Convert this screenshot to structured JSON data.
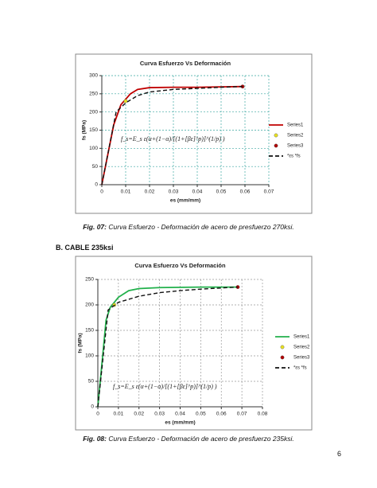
{
  "chart_data": [
    {
      "type": "line",
      "title": "Curva Esfuerzo Vs Deformación",
      "xlabel": "es (mm/mm)",
      "ylabel": "fs (MPa)",
      "annotation": "f_s=E_s ε(α+(1−α)/[(1+[βε]^p)]^(1/p) )",
      "xlim": [
        0,
        0.07
      ],
      "xticks": [
        0,
        0.01,
        0.02,
        0.03,
        0.04,
        0.05,
        0.06,
        0.07
      ],
      "ylim": [
        0,
        300
      ],
      "yticks": [
        0,
        50,
        100,
        150,
        200,
        250,
        300
      ],
      "grid": true,
      "grid_color": "#3aa6a0",
      "series": [
        {
          "name": "Series1",
          "color": "#c00000",
          "line_style": "solid",
          "marker": false,
          "x": [
            0,
            0.005,
            0.008,
            0.012,
            0.015,
            0.02,
            0.03,
            0.04,
            0.05,
            0.059
          ],
          "values": [
            0,
            165,
            220,
            250,
            262,
            267,
            268,
            268,
            269,
            270
          ]
        },
        {
          "name": "Series2",
          "color": "#e8e020",
          "line_style": "none",
          "marker": true,
          "x": [
            0.01
          ],
          "values": [
            230
          ]
        },
        {
          "name": "Series3",
          "color": "#b00000",
          "line_style": "none",
          "marker": true,
          "x": [
            0.059
          ],
          "values": [
            270
          ]
        },
        {
          "name": "*εs *fs",
          "color": "#111111",
          "line_style": "dashed",
          "marker": false,
          "x": [
            0,
            0.006,
            0.01,
            0.015,
            0.02,
            0.03,
            0.04,
            0.05,
            0.059
          ],
          "values": [
            0,
            200,
            225,
            245,
            255,
            262,
            265,
            268,
            270
          ]
        }
      ]
    },
    {
      "type": "line",
      "title": "Curva Esfuerzo Vs Deformación",
      "xlabel": "es (mm/mm)",
      "ylabel": "fs (MPa)",
      "annotation": "f_s=E_s ε(α+(1−α)/[(1+[βε]^p)]^(1/p) )",
      "xlim": [
        0,
        0.08
      ],
      "xticks": [
        0,
        0.01,
        0.02,
        0.03,
        0.04,
        0.05,
        0.06,
        0.07,
        0.08
      ],
      "ylim": [
        0,
        250
      ],
      "yticks": [
        0,
        50,
        100,
        150,
        200,
        250
      ],
      "grid": true,
      "grid_color": "#999999",
      "series": [
        {
          "name": "Series1",
          "color": "#22b14c",
          "line_style": "solid",
          "marker": false,
          "x": [
            0,
            0.004,
            0.006,
            0.01,
            0.015,
            0.02,
            0.03,
            0.05,
            0.068
          ],
          "values": [
            0,
            170,
            195,
            215,
            228,
            232,
            234,
            235,
            235
          ]
        },
        {
          "name": "Series2",
          "color": "#e8e020",
          "line_style": "none",
          "marker": true,
          "x": [
            0.008
          ],
          "values": [
            200
          ]
        },
        {
          "name": "Series3",
          "color": "#b00000",
          "line_style": "none",
          "marker": true,
          "x": [
            0.068
          ],
          "values": [
            235
          ]
        },
        {
          "name": "*εs *fs",
          "color": "#111111",
          "line_style": "dashed",
          "marker": false,
          "x": [
            0,
            0.005,
            0.01,
            0.02,
            0.03,
            0.04,
            0.05,
            0.068
          ],
          "values": [
            0,
            190,
            205,
            217,
            224,
            228,
            231,
            235
          ]
        }
      ]
    }
  ],
  "captions": [
    {
      "label": "Fig. 07:",
      "text": "Curva Esfuerzo - Deformación de acero de presfuerzo 270ksi."
    },
    {
      "label": "Fig. 08:",
      "text": "Curva Esfuerzo - Deformación de acero de presfuerzo 235ksi."
    }
  ],
  "section": "B.   CABLE 235ksi",
  "page_number": "6"
}
